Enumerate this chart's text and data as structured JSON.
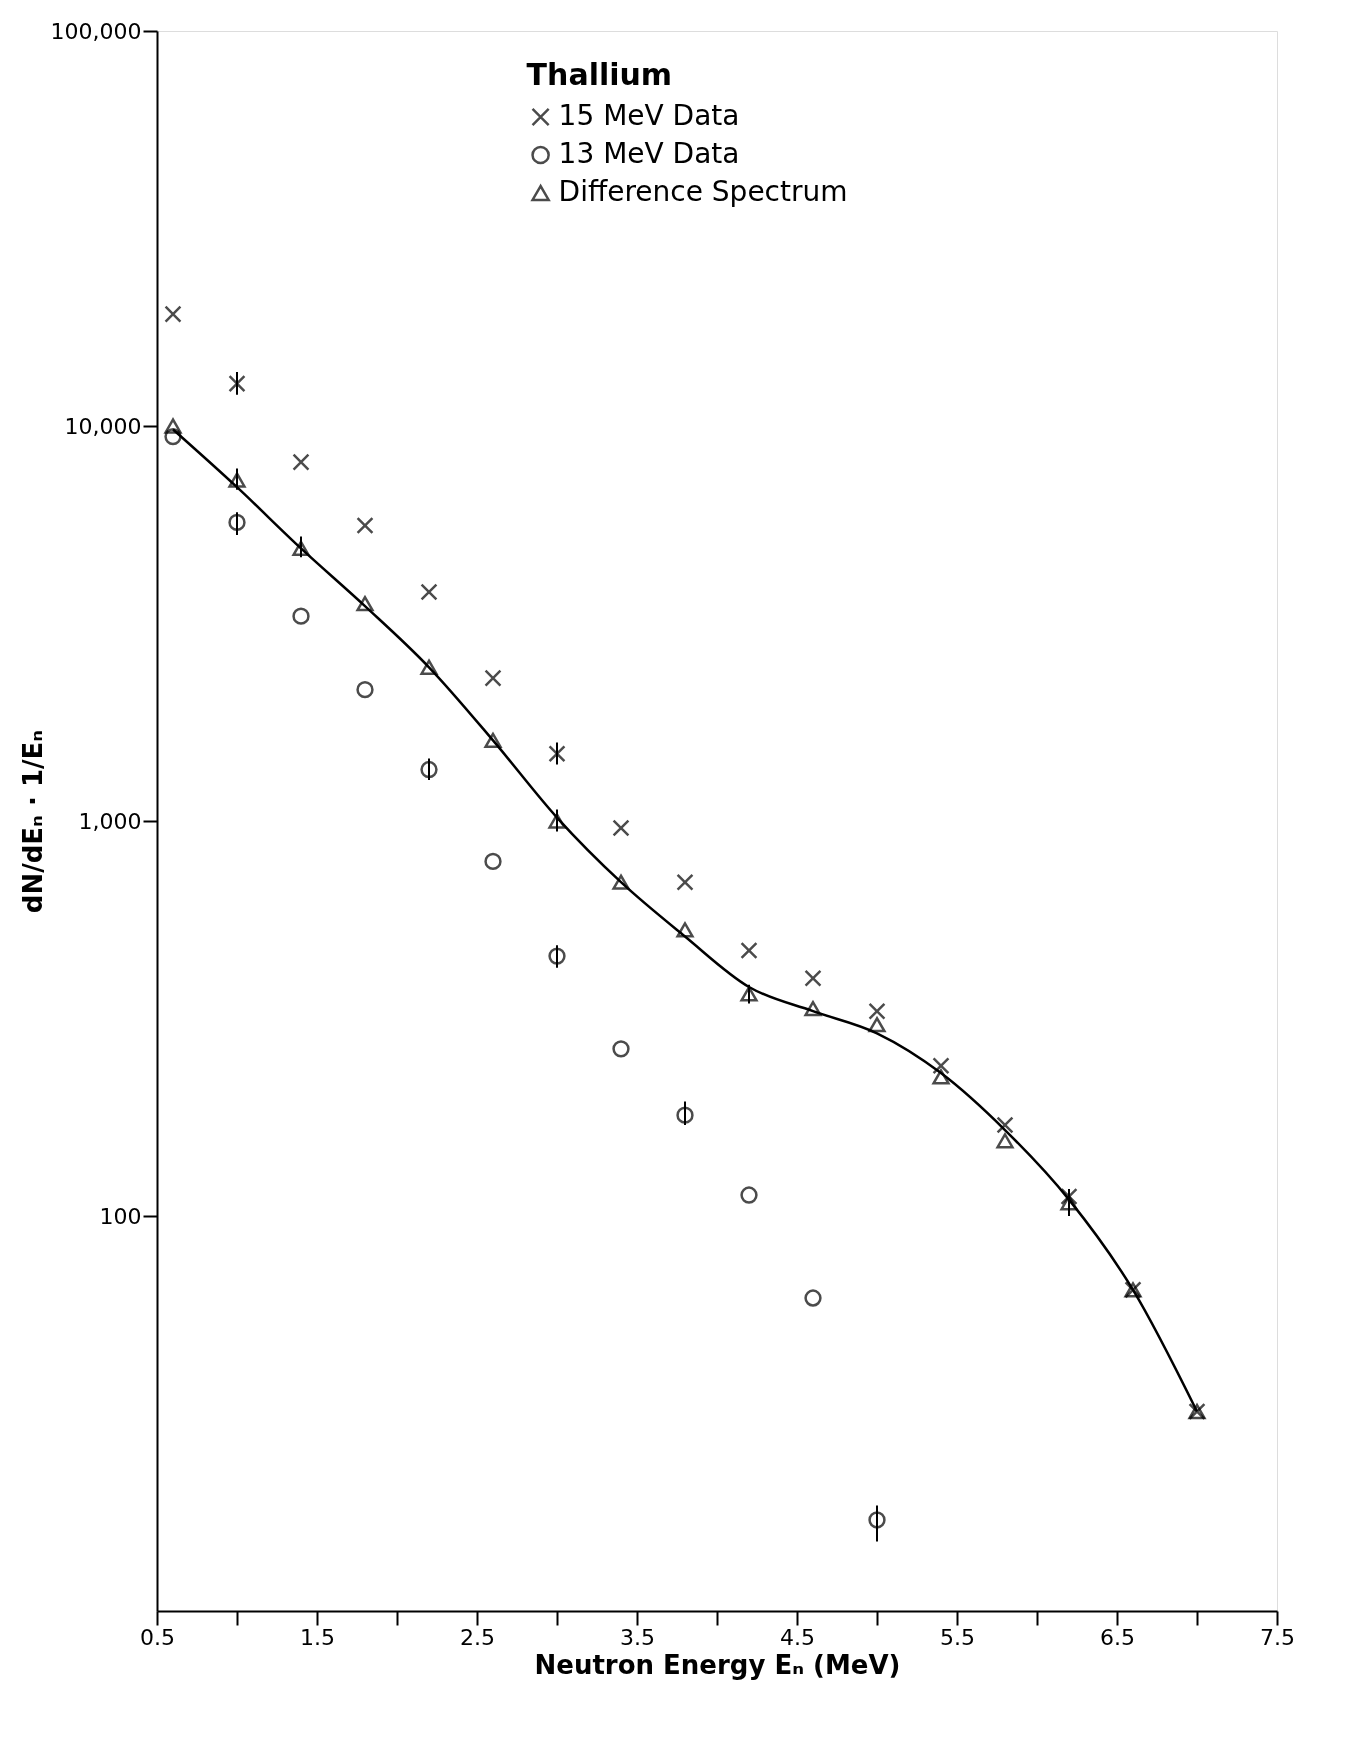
{
  "chart_data": {
    "type": "scatter",
    "xlabel": "Neutron Energy Eₙ (MeV)",
    "ylabel": "dN/dEₙ · 1/Eₙ",
    "legend_title": "Thallium",
    "legend": "top",
    "grid": false,
    "log": "y",
    "xlim": [
      0.5,
      7.5
    ],
    "xticks": [
      0.5,
      {
        "value": 1.0,
        "label": null
      },
      1.5,
      {
        "value": 2.0,
        "label": null
      },
      2.5,
      {
        "value": 3.0,
        "label": null
      },
      3.5,
      {
        "value": 4.0,
        "label": null
      },
      4.5,
      {
        "value": 5.0,
        "label": null
      },
      5.5,
      {
        "value": 6.0,
        "label": null
      },
      6.5,
      {
        "value": 7.0,
        "label": null
      },
      7.5
    ],
    "ylim": [
      10,
      100000
    ],
    "yticks": [
      100,
      {
        "value": 1000,
        "label": "1,000"
      },
      {
        "value": 10000,
        "label": "10,000"
      },
      {
        "value": 100000,
        "label": "100,000"
      }
    ],
    "series": [
      {
        "name": "15 MeV Data",
        "marker": "cross",
        "color": "#000000",
        "x": [
          0.6,
          1.0,
          1.4,
          1.8,
          2.2,
          2.6,
          3.0,
          3.4,
          3.8,
          4.2,
          4.6,
          5.0,
          5.4,
          5.8,
          6.2,
          6.6,
          7.0
        ],
        "values": [
          19200,
          12800,
          8100,
          5600,
          3800,
          2300,
          1480,
          960,
          700,
          470,
          400,
          330,
          240,
          170,
          112,
          65,
          32
        ],
        "errors": [
          null,
          [
            12000,
            13700
          ],
          null,
          null,
          null,
          null,
          [
            1390,
            1580
          ],
          null,
          null,
          null,
          null,
          null,
          null,
          null,
          null,
          null,
          null
        ]
      },
      {
        "name": "13 MeV Data",
        "marker": "circle",
        "color": "#000000",
        "x": [
          0.6,
          1.0,
          1.4,
          1.8,
          2.2,
          2.6,
          3.0,
          3.4,
          3.8,
          4.2,
          4.6,
          5.0
        ],
        "values": [
          9400,
          5700,
          3300,
          2150,
          1350,
          790,
          455,
          265,
          180,
          113,
          62,
          17
        ],
        "errors": [
          null,
          [
            5300,
            6050
          ],
          null,
          null,
          [
            1270,
            1440
          ],
          null,
          [
            425,
            485
          ],
          null,
          [
            170,
            195
          ],
          null,
          null,
          [
            15,
            18.5
          ]
        ]
      },
      {
        "name": "Difference Spectrum",
        "marker": "triangle",
        "color": "#000000",
        "x": [
          0.6,
          1.0,
          1.4,
          1.8,
          2.2,
          2.6,
          3.0,
          3.4,
          3.8,
          4.2,
          4.6,
          5.0,
          5.4,
          5.8,
          6.2,
          6.6,
          7.0
        ],
        "values": [
          10000,
          7300,
          4900,
          3550,
          2450,
          1600,
          1000,
          700,
          530,
          365,
          335,
          305,
          225,
          155,
          108,
          65,
          32
        ],
        "errors": [
          null,
          [
            6900,
            7800
          ],
          [
            4650,
            5250
          ],
          null,
          null,
          null,
          [
            940,
            1070
          ],
          null,
          null,
          [
            345,
            385
          ],
          null,
          null,
          null,
          null,
          [
            100,
            117
          ],
          null,
          null
        ]
      },
      {
        "type": "line",
        "marker": "none",
        "line_style": "solid",
        "color": "#000000",
        "x": [
          0.6,
          1.0,
          1.4,
          1.8,
          2.2,
          2.6,
          3.0,
          3.4,
          3.8,
          4.2,
          4.6,
          5.0,
          5.4,
          5.8,
          6.2,
          6.6,
          7.0
        ],
        "values": [
          9800,
          7000,
          4900,
          3500,
          2450,
          1600,
          1020,
          700,
          510,
          380,
          330,
          290,
          230,
          165,
          110,
          65,
          32
        ]
      }
    ]
  }
}
